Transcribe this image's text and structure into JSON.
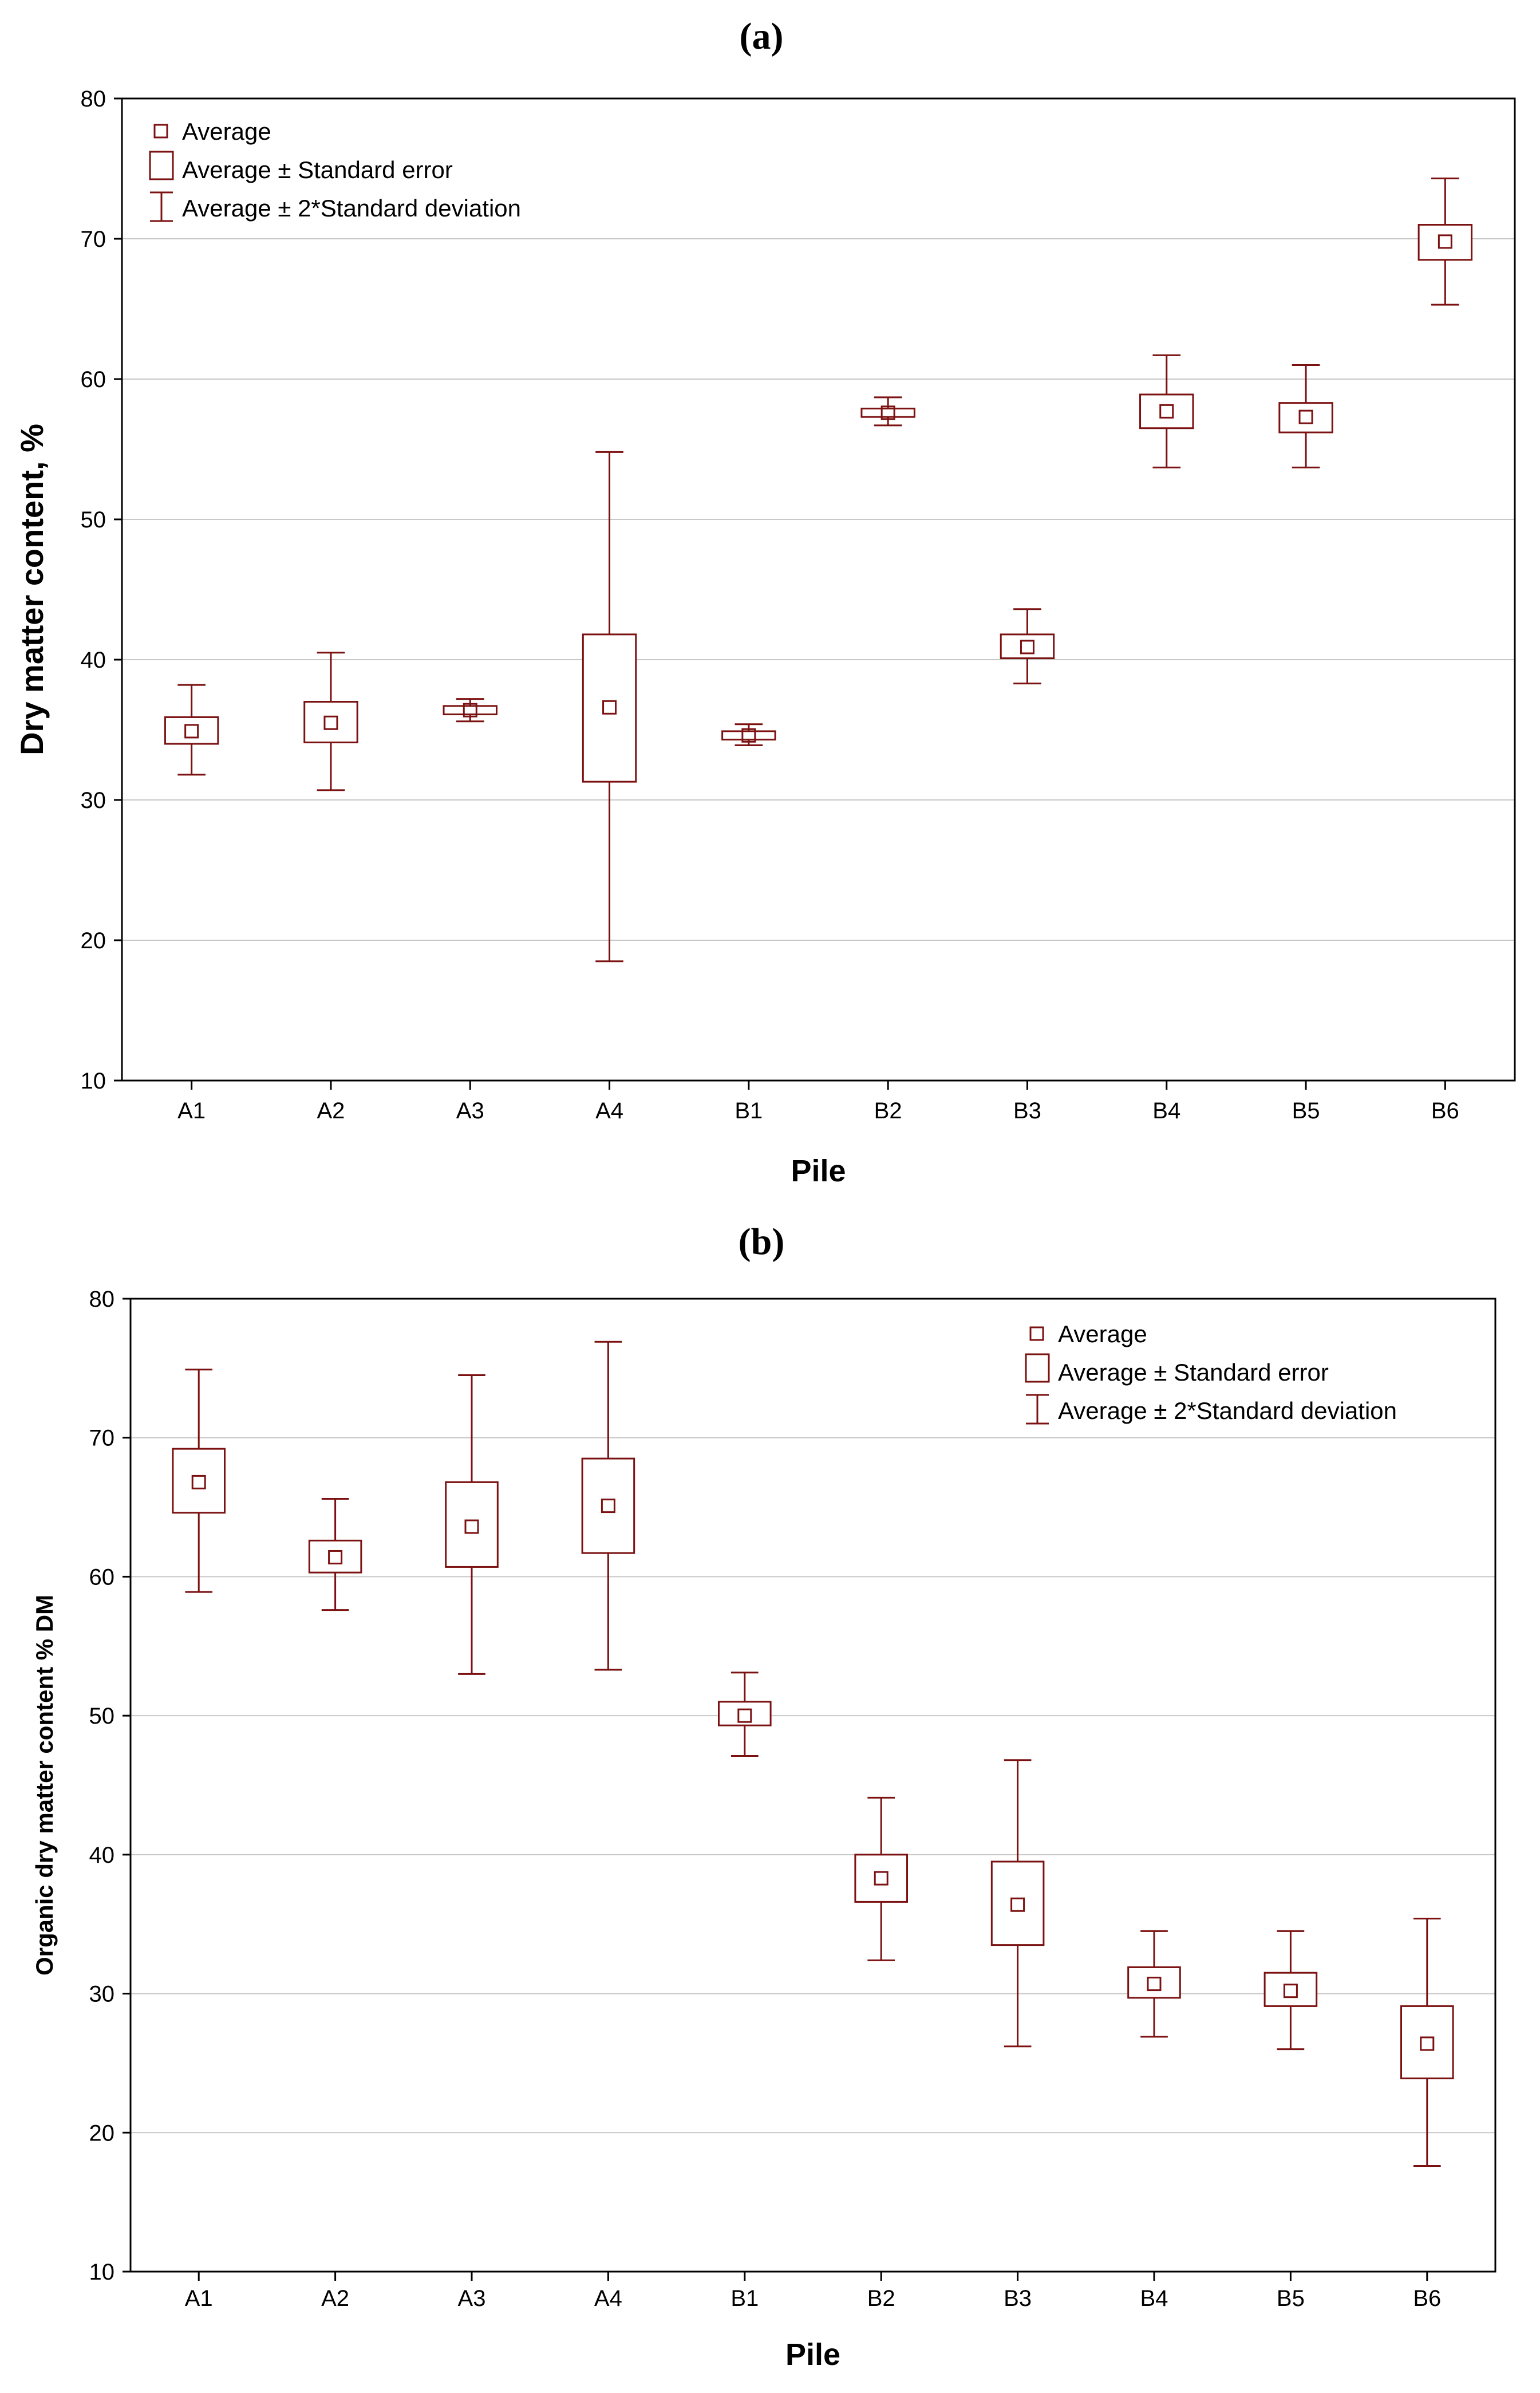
{
  "chart_data": [
    {
      "type": "box",
      "panel_label": "(a)",
      "xlabel": "Pile",
      "ylabel": "Dry matter content, %",
      "ylim": [
        10,
        80
      ],
      "yticks": [
        10,
        20,
        30,
        40,
        50,
        60,
        70,
        80
      ],
      "grid": true,
      "legend_position": "top-left",
      "legend": [
        "Average",
        "Average ± Standard error",
        "Average ± 2*Standard deviation"
      ],
      "categories": [
        "A1",
        "A2",
        "A3",
        "A4",
        "B1",
        "B2",
        "B3",
        "B4",
        "B5",
        "B6"
      ],
      "series": [
        {
          "name": "A1",
          "mean": 34.9,
          "se_low": 34.0,
          "se_high": 35.9,
          "sd2_low": 31.8,
          "sd2_high": 38.2
        },
        {
          "name": "A2",
          "mean": 35.5,
          "se_low": 34.1,
          "se_high": 37.0,
          "sd2_low": 30.7,
          "sd2_high": 40.5
        },
        {
          "name": "A3",
          "mean": 36.4,
          "se_low": 36.1,
          "se_high": 36.7,
          "sd2_low": 35.6,
          "sd2_high": 37.2
        },
        {
          "name": "A4",
          "mean": 36.6,
          "se_low": 31.3,
          "se_high": 41.8,
          "sd2_low": 18.5,
          "sd2_high": 54.8
        },
        {
          "name": "B1",
          "mean": 34.6,
          "se_low": 34.3,
          "se_high": 34.9,
          "sd2_low": 33.9,
          "sd2_high": 35.4
        },
        {
          "name": "B2",
          "mean": 57.6,
          "se_low": 57.3,
          "se_high": 57.9,
          "sd2_low": 56.7,
          "sd2_high": 58.7
        },
        {
          "name": "B3",
          "mean": 40.9,
          "se_low": 40.1,
          "se_high": 41.8,
          "sd2_low": 38.3,
          "sd2_high": 43.6
        },
        {
          "name": "B4",
          "mean": 57.7,
          "se_low": 56.5,
          "se_high": 58.9,
          "sd2_low": 53.7,
          "sd2_high": 61.7
        },
        {
          "name": "B5",
          "mean": 57.3,
          "se_low": 56.2,
          "se_high": 58.3,
          "sd2_low": 53.7,
          "sd2_high": 61.0
        },
        {
          "name": "B6",
          "mean": 69.8,
          "se_low": 68.5,
          "se_high": 71.0,
          "sd2_low": 65.3,
          "sd2_high": 74.3
        }
      ]
    },
    {
      "type": "box",
      "panel_label": "(b)",
      "xlabel": "Pile",
      "ylabel": "Organic dry matter content % DM",
      "ylim": [
        10,
        80
      ],
      "yticks": [
        10,
        20,
        30,
        40,
        50,
        60,
        70,
        80
      ],
      "grid": true,
      "legend_position": "top-right",
      "legend": [
        "Average",
        "Average ± Standard error",
        "Average ± 2*Standard deviation"
      ],
      "categories": [
        "A1",
        "A2",
        "A3",
        "A4",
        "B1",
        "B2",
        "B3",
        "B4",
        "B5",
        "B6"
      ],
      "series": [
        {
          "name": "A1",
          "mean": 66.8,
          "se_low": 64.6,
          "se_high": 69.2,
          "sd2_low": 58.9,
          "sd2_high": 74.9
        },
        {
          "name": "A2",
          "mean": 61.4,
          "se_low": 60.3,
          "se_high": 62.6,
          "sd2_low": 57.6,
          "sd2_high": 65.6
        },
        {
          "name": "A3",
          "mean": 63.6,
          "se_low": 60.7,
          "se_high": 66.8,
          "sd2_low": 53.0,
          "sd2_high": 74.5
        },
        {
          "name": "A4",
          "mean": 65.1,
          "se_low": 61.7,
          "se_high": 68.5,
          "sd2_low": 53.3,
          "sd2_high": 76.9
        },
        {
          "name": "B1",
          "mean": 50.0,
          "se_low": 49.3,
          "se_high": 51.0,
          "sd2_low": 47.1,
          "sd2_high": 53.1
        },
        {
          "name": "B2",
          "mean": 38.3,
          "se_low": 36.6,
          "se_high": 40.0,
          "sd2_low": 32.4,
          "sd2_high": 44.1
        },
        {
          "name": "B3",
          "mean": 36.4,
          "se_low": 33.5,
          "se_high": 39.5,
          "sd2_low": 26.2,
          "sd2_high": 46.8
        },
        {
          "name": "B4",
          "mean": 30.7,
          "se_low": 29.7,
          "se_high": 31.9,
          "sd2_low": 26.9,
          "sd2_high": 34.5
        },
        {
          "name": "B5",
          "mean": 30.2,
          "se_low": 29.1,
          "se_high": 31.5,
          "sd2_low": 26.0,
          "sd2_high": 34.5
        },
        {
          "name": "B6",
          "mean": 26.4,
          "se_low": 23.9,
          "se_high": 29.1,
          "sd2_low": 17.6,
          "sd2_high": 35.4
        }
      ]
    }
  ],
  "style": {
    "mark_color": "#7b1111",
    "grid_color": "#c8c8c8",
    "axis_color": "#000000"
  }
}
